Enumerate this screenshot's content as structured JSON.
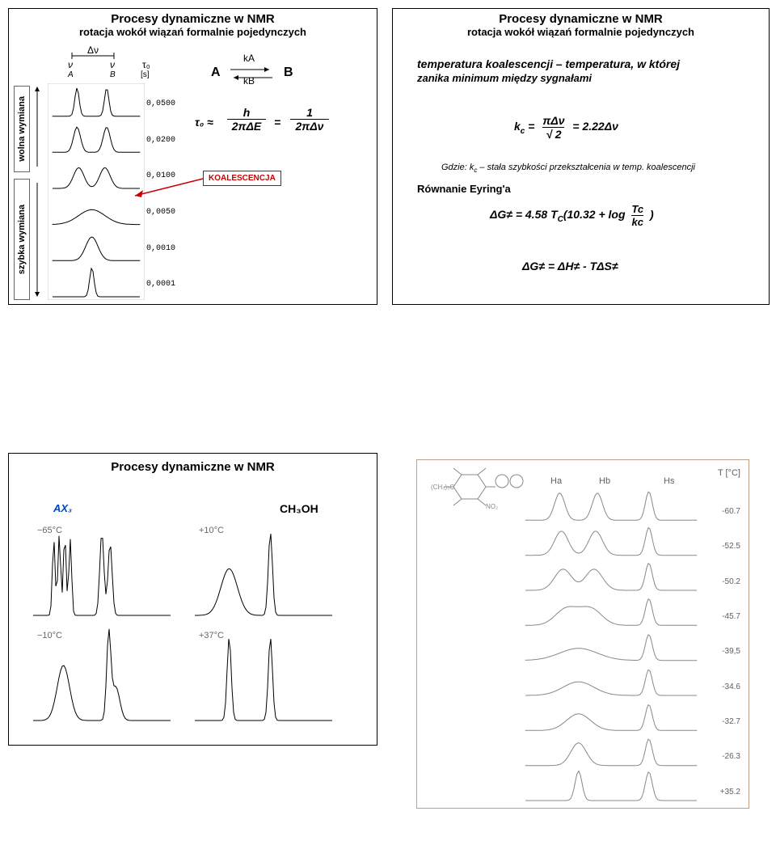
{
  "panelTL": {
    "title": "Procesy dynamiczne w NMR",
    "subtitle": "rotacja wokół wiązań formalnie pojedynczych",
    "vlabel_slow": "wolna wymiana",
    "vlabel_fast": "szybka wymiana",
    "dnu": "Δν",
    "nu1": "ν",
    "nu2": "ν",
    "A": "A",
    "B": "B",
    "tau": "τ₀",
    "s": "[s]",
    "ka": "kA",
    "kb": "kB",
    "lblA": "A",
    "lblB": "B",
    "frac_left_top": "h",
    "frac_left_bot": "2πΔE",
    "frac_eq": "=",
    "frac_right_top": "1",
    "frac_right_bot": "2πΔν",
    "tau_approx": "τ₀ ≈",
    "koal": "KOALESCENCJA",
    "tau_vals": [
      "0,0500",
      "0,0200",
      "0,0100",
      "0,0050",
      "0,0010",
      "0,0001"
    ],
    "spectra": {
      "rows": 6,
      "shapes": [
        {
          "peaks": [
            {
              "x": 0.28,
              "h": 0.95,
              "w": 0.05
            },
            {
              "x": 0.62,
              "h": 0.95,
              "w": 0.05
            }
          ]
        },
        {
          "peaks": [
            {
              "x": 0.28,
              "h": 0.85,
              "w": 0.08
            },
            {
              "x": 0.62,
              "h": 0.85,
              "w": 0.08
            }
          ]
        },
        {
          "peaks": [
            {
              "x": 0.3,
              "h": 0.7,
              "w": 0.12
            },
            {
              "x": 0.6,
              "h": 0.7,
              "w": 0.12
            }
          ]
        },
        {
          "peaks": [
            {
              "x": 0.45,
              "h": 0.5,
              "w": 0.3
            }
          ]
        },
        {
          "peaks": [
            {
              "x": 0.45,
              "h": 0.8,
              "w": 0.14
            }
          ]
        },
        {
          "peaks": [
            {
              "x": 0.45,
              "h": 0.98,
              "w": 0.05
            }
          ]
        }
      ],
      "stroke": "#000",
      "stroke_width": 1
    }
  },
  "panelTR": {
    "title": "Procesy dynamiczne w NMR",
    "subtitle": "rotacja wokół wiązań formalnie pojedynczych",
    "line1a": "temperatura koalescencji",
    "line1b": " – temperatura, w której",
    "line2": "zanika minimum między sygnałami",
    "kc_lhs": "k",
    "kc_sub": "c",
    "kc_eq": " = ",
    "kc_top": "πΔν",
    "kc_bot": "√ 2",
    "kc_rhs": " = 2.22Δν",
    "gdzie": "Gdzie: k",
    "gdzie_sub": "c",
    "gdzie2": " – stała szybkości przekształcenia w temp. koalescencji",
    "eyring": "Równanie Eyring'a",
    "dg": "ΔG≠ = 4.58 T",
    "dg_sub": "C",
    "dg2": "(10.32 + log",
    "frac_tc": "Tc",
    "frac_kc": "kc",
    "paren": ")",
    "dglast": "ΔG≠ = ΔH≠ - TΔS≠"
  },
  "panelBL": {
    "title": "Procesy dynamiczne w NMR",
    "ax3": "AX₃",
    "ch3oh": "CH₃OH",
    "temps": [
      "−65°C",
      "+10°C",
      "−10°C",
      "+37°C"
    ],
    "spectra": [
      {
        "type": "quartet+doublet",
        "peaks": [
          {
            "x": 0.15,
            "h": 0.9,
            "w": 0.02
          },
          {
            "x": 0.19,
            "h": 0.95,
            "w": 0.02
          },
          {
            "x": 0.23,
            "h": 0.95,
            "w": 0.02
          },
          {
            "x": 0.27,
            "h": 0.9,
            "w": 0.02
          },
          {
            "x": 0.5,
            "h": 0.98,
            "w": 0.03
          },
          {
            "x": 0.56,
            "h": 0.85,
            "w": 0.03
          }
        ]
      },
      {
        "type": "two",
        "peaks": [
          {
            "x": 0.25,
            "h": 0.55,
            "w": 0.12
          },
          {
            "x": 0.55,
            "h": 0.98,
            "w": 0.03
          }
        ]
      },
      {
        "type": "broad",
        "peaks": [
          {
            "x": 0.22,
            "h": 0.65,
            "w": 0.09
          },
          {
            "x": 0.55,
            "h": 0.98,
            "w": 0.03
          },
          {
            "x": 0.6,
            "h": 0.4,
            "w": 0.06
          }
        ]
      },
      {
        "type": "sharp",
        "peaks": [
          {
            "x": 0.25,
            "h": 0.98,
            "w": 0.03
          },
          {
            "x": 0.55,
            "h": 0.98,
            "w": 0.03
          }
        ]
      }
    ],
    "stroke": "#000"
  },
  "panelBR": {
    "border": "#c0a088",
    "molecule_color": "#888",
    "ha": "Ha",
    "hb": "Hb",
    "hs": "Hs",
    "tcol": "T [°C]",
    "temps": [
      "-60.7",
      "-52.5",
      "-50.2",
      "-45.7",
      "-39,5",
      "-34.6",
      "-32.7",
      "-26.3",
      "+35.2"
    ],
    "spectra": [
      {
        "peaks": [
          {
            "x": 0.2,
            "h": 0.9,
            "w": 0.06
          },
          {
            "x": 0.42,
            "h": 0.9,
            "w": 0.06
          },
          {
            "x": 0.72,
            "h": 0.95,
            "w": 0.04
          }
        ]
      },
      {
        "peaks": [
          {
            "x": 0.21,
            "h": 0.8,
            "w": 0.08
          },
          {
            "x": 0.41,
            "h": 0.8,
            "w": 0.08
          },
          {
            "x": 0.72,
            "h": 0.92,
            "w": 0.04
          }
        ]
      },
      {
        "peaks": [
          {
            "x": 0.22,
            "h": 0.7,
            "w": 0.1
          },
          {
            "x": 0.4,
            "h": 0.7,
            "w": 0.1
          },
          {
            "x": 0.72,
            "h": 0.9,
            "w": 0.04
          }
        ]
      },
      {
        "peaks": [
          {
            "x": 0.24,
            "h": 0.55,
            "w": 0.13
          },
          {
            "x": 0.38,
            "h": 0.55,
            "w": 0.13
          },
          {
            "x": 0.72,
            "h": 0.88,
            "w": 0.04
          }
        ]
      },
      {
        "peaks": [
          {
            "x": 0.31,
            "h": 0.4,
            "w": 0.22
          },
          {
            "x": 0.72,
            "h": 0.86,
            "w": 0.04
          }
        ]
      },
      {
        "peaks": [
          {
            "x": 0.31,
            "h": 0.45,
            "w": 0.18
          },
          {
            "x": 0.72,
            "h": 0.86,
            "w": 0.04
          }
        ]
      },
      {
        "peaks": [
          {
            "x": 0.31,
            "h": 0.55,
            "w": 0.14
          },
          {
            "x": 0.72,
            "h": 0.86,
            "w": 0.04
          }
        ]
      },
      {
        "peaks": [
          {
            "x": 0.31,
            "h": 0.75,
            "w": 0.09
          },
          {
            "x": 0.72,
            "h": 0.88,
            "w": 0.04
          }
        ]
      },
      {
        "peaks": [
          {
            "x": 0.31,
            "h": 0.98,
            "w": 0.04
          },
          {
            "x": 0.72,
            "h": 0.95,
            "w": 0.04
          }
        ]
      }
    ],
    "stroke": "#888",
    "text_color": "#606060"
  }
}
